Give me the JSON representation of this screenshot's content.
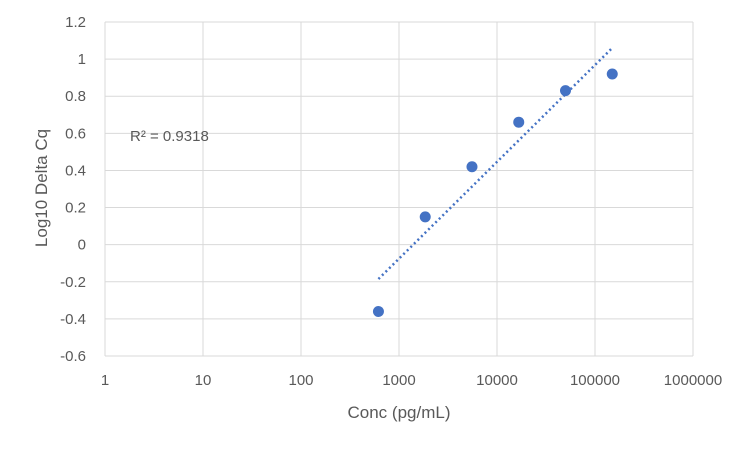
{
  "chart_data": {
    "type": "scatter",
    "title": "",
    "xlabel": "Conc (pg/mL)",
    "ylabel": "Log10 Delta Cq",
    "x_scale": "log",
    "xlim": [
      1,
      1000000
    ],
    "ylim": [
      -0.6,
      1.2
    ],
    "x_ticks": [
      "1",
      "10",
      "100",
      "1000",
      "10000",
      "100000",
      "1000000"
    ],
    "y_ticks": [
      "1.2",
      "1",
      "0.8",
      "0.6",
      "0.4",
      "0.2",
      "0",
      "-0.2",
      "-0.4",
      "-0.6"
    ],
    "grid": true,
    "legend": "none",
    "series": [
      {
        "points": [
          {
            "x": 617,
            "y": -0.36
          },
          {
            "x": 1852,
            "y": 0.15
          },
          {
            "x": 5556,
            "y": 0.42
          },
          {
            "x": 16667,
            "y": 0.66
          },
          {
            "x": 50000,
            "y": 0.83
          },
          {
            "x": 150000,
            "y": 0.92
          }
        ],
        "color": "#4472C4"
      }
    ],
    "trendline": {
      "type": "logarithmic",
      "style": "dotted",
      "color": "#4472C4",
      "from": {
        "x": 617,
        "y": -0.185
      },
      "to": {
        "x": 150000,
        "y": 1.06
      }
    },
    "annotation": "R² = 0.9318"
  }
}
